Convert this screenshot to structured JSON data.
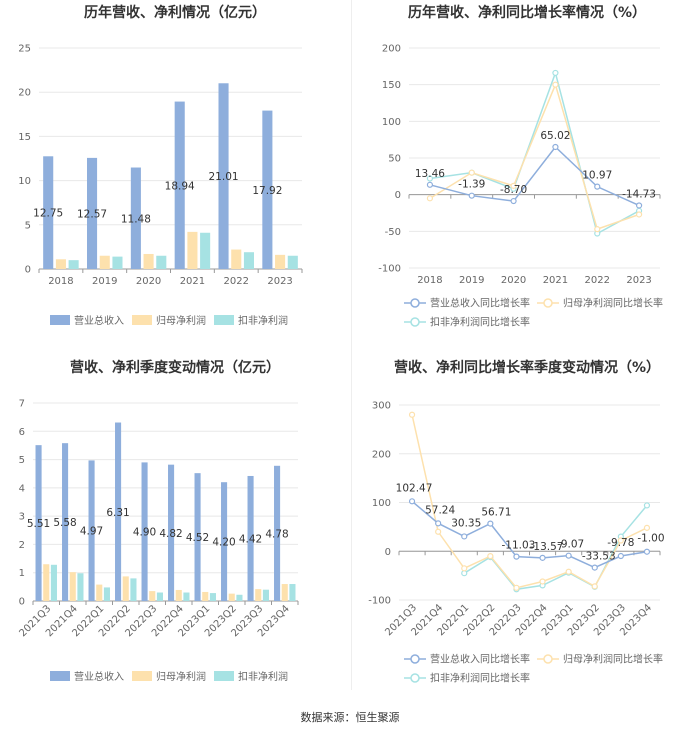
{
  "footer": {
    "source": "数据来源：恒生聚源"
  },
  "legend": {
    "revenue": "营业总收入",
    "net_profit": "归母净利润",
    "deducted_profit": "扣非净利润",
    "revenue_growth": "营业总收入同比增长率",
    "net_profit_growth": "归母净利润同比增长率",
    "deducted_profit_growth": "扣非净利润同比增长率"
  },
  "colors": {
    "revenue": "#8eaedc",
    "net_profit": "#fde1ad",
    "deducted_profit": "#a6e2e3",
    "grid": "#e8e8e8",
    "axis": "#999999"
  },
  "chart_data": [
    {
      "type": "bar",
      "title": "历年营收、净利情况（亿元）",
      "categories": [
        "2018",
        "2019",
        "2020",
        "2021",
        "2022",
        "2023"
      ],
      "ylim": [
        0,
        25
      ],
      "yticks": [
        0,
        5,
        10,
        15,
        20,
        25
      ],
      "series": [
        {
          "name": "营业总收入",
          "values": [
            12.75,
            12.57,
            11.48,
            18.94,
            21.01,
            17.92
          ],
          "labels": [
            "12.75",
            "12.57",
            "11.48",
            "18.94",
            "21.01",
            "17.92"
          ]
        },
        {
          "name": "归母净利润",
          "values": [
            1.1,
            1.5,
            1.7,
            4.2,
            2.2,
            1.6
          ]
        },
        {
          "name": "扣非净利润",
          "values": [
            1.0,
            1.4,
            1.5,
            4.1,
            1.9,
            1.5
          ]
        }
      ]
    },
    {
      "type": "line",
      "title": "历年营收、净利同比增长率情况（%）",
      "categories": [
        "2018",
        "2019",
        "2020",
        "2021",
        "2022",
        "2023"
      ],
      "ylim": [
        -100,
        200
      ],
      "yticks": [
        -100,
        -50,
        0,
        50,
        100,
        150,
        200
      ],
      "series": [
        {
          "name": "营业总收入同比增长率",
          "values": [
            13.46,
            -1.39,
            -8.7,
            65.02,
            10.97,
            -14.73
          ],
          "labels": [
            "13.46",
            "-1.39",
            "-8.70",
            "65.02",
            "10.97",
            "-14.73"
          ]
        },
        {
          "name": "归母净利润同比增长率",
          "values": [
            -5,
            30,
            12,
            150,
            -47,
            -27
          ]
        },
        {
          "name": "扣非净利润同比增长率",
          "values": [
            22,
            30,
            8,
            166,
            -53,
            -22
          ]
        }
      ]
    },
    {
      "type": "bar",
      "title": "营收、净利季度变动情况（亿元）",
      "categories": [
        "2021Q3",
        "2021Q4",
        "2022Q1",
        "2022Q2",
        "2022Q3",
        "2022Q4",
        "2023Q1",
        "2023Q2",
        "2023Q3",
        "2023Q4"
      ],
      "ylim": [
        0,
        7
      ],
      "yticks": [
        0,
        1,
        2,
        3,
        4,
        5,
        6,
        7
      ],
      "series": [
        {
          "name": "营业总收入",
          "values": [
            5.51,
            5.58,
            4.97,
            6.31,
            4.9,
            4.82,
            4.52,
            4.2,
            4.42,
            4.78
          ],
          "labels": [
            "5.51",
            "5.58",
            "4.97",
            "6.31",
            "4.90",
            "4.82",
            "4.52",
            "4.20",
            "4.42",
            "4.78"
          ]
        },
        {
          "name": "归母净利润",
          "values": [
            1.3,
            1.02,
            0.58,
            0.87,
            0.35,
            0.39,
            0.32,
            0.26,
            0.42,
            0.6
          ]
        },
        {
          "name": "扣非净利润",
          "values": [
            1.28,
            0.98,
            0.48,
            0.8,
            0.3,
            0.3,
            0.28,
            0.22,
            0.4,
            0.6
          ]
        }
      ]
    },
    {
      "type": "line",
      "title": "营收、净利同比增长率季度变动情况（%）",
      "categories": [
        "2021Q3",
        "2021Q4",
        "2022Q1",
        "2022Q2",
        "2022Q3",
        "2022Q4",
        "2023Q1",
        "2023Q2",
        "2023Q3",
        "2023Q4"
      ],
      "ylim": [
        -100,
        300
      ],
      "yticks": [
        -100,
        0,
        100,
        200,
        300
      ],
      "series": [
        {
          "name": "营业总收入同比增长率",
          "values": [
            102.47,
            57.24,
            30.35,
            56.71,
            -11.03,
            -13.57,
            -9.07,
            -33.53,
            -9.78,
            -1.0
          ],
          "labels": [
            "102.47",
            "57.24",
            "30.35",
            "56.71",
            "-11.03",
            "-13.57",
            "-9.07",
            "-33.53",
            "-9.78",
            "-1.00"
          ]
        },
        {
          "name": "归母净利润同比增长率",
          "values": [
            280,
            40,
            -35,
            -10,
            -75,
            -62,
            -42,
            -72,
            22,
            48
          ]
        },
        {
          "name": "扣非净利润同比增长率",
          "values": [
            null,
            null,
            -45,
            -12,
            -78,
            -70,
            -44,
            -73,
            30,
            94
          ]
        }
      ]
    }
  ]
}
